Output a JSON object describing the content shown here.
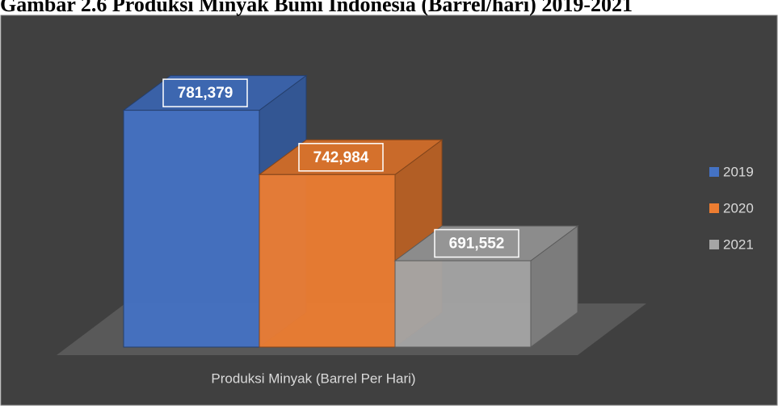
{
  "chart_data": {
    "type": "bar3d",
    "title": "Gambar 2.6 Produksi Minyak Bumi Indonesia (Barrel/hari) 2019-2021",
    "categories": [
      "Produksi Minyak (Barrel Per Hari)"
    ],
    "series": [
      {
        "name": "2019",
        "color": "#4472c4",
        "values": [
          781379
        ],
        "value_labels": [
          "781,379"
        ]
      },
      {
        "name": "2020",
        "color": "#ed7d31",
        "values": [
          742984
        ],
        "value_labels": [
          "742,984"
        ]
      },
      {
        "name": "2021",
        "color": "#a5a5a5",
        "values": [
          691552
        ],
        "value_labels": [
          "691,552"
        ]
      }
    ],
    "ylim": [
      640000,
      800000
    ],
    "legend": "right"
  }
}
